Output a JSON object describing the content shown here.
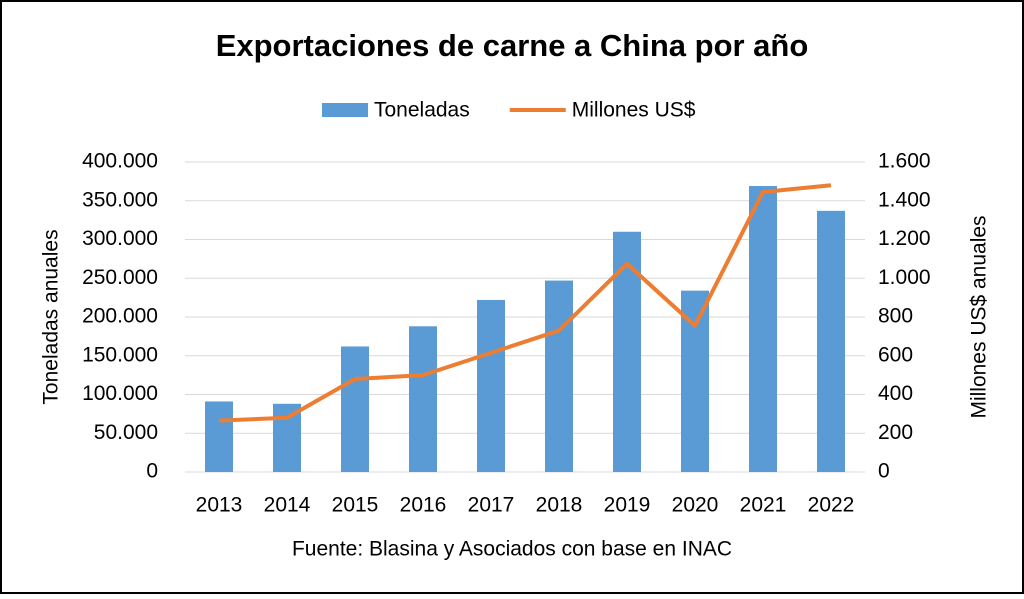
{
  "chart_data": {
    "type": "bar_line",
    "title": "Exportaciones de carne a China por año",
    "categories": [
      "2013",
      "2014",
      "2015",
      "2016",
      "2017",
      "2018",
      "2019",
      "2020",
      "2021",
      "2022"
    ],
    "series": [
      {
        "name": "Toneladas",
        "color": "#5b9bd5",
        "type": "bar",
        "values": [
          91000,
          88000,
          162000,
          188000,
          222000,
          247000,
          310000,
          234000,
          369000,
          337000
        ]
      },
      {
        "name": "Millones US$",
        "color": "#ed7d31",
        "type": "line",
        "axis": "y2",
        "values": [
          265,
          280,
          480,
          500,
          615,
          730,
          1075,
          755,
          1445,
          1480
        ]
      }
    ],
    "ylabel": "Toneladas anuales",
    "y2label": "Millones US$ anuales",
    "ylim": [
      0,
      400000
    ],
    "yticks": [
      0,
      {
        "value": 50000,
        "label": "50.000"
      },
      {
        "value": 100000,
        "label": "100.000"
      },
      {
        "value": 150000,
        "label": "150.000"
      },
      {
        "value": 200000,
        "label": "200.000"
      },
      {
        "value": 250000,
        "label": "250.000"
      },
      {
        "value": 300000,
        "label": "300.000"
      },
      {
        "value": 350000,
        "label": "350.000"
      },
      {
        "value": 400000,
        "label": "400.000"
      }
    ],
    "y2lim": [
      0,
      1600
    ],
    "y2ticks": [
      0,
      200,
      400,
      600,
      800,
      {
        "value": 1000,
        "label": "1.000"
      },
      {
        "value": 1200,
        "label": "1.200"
      },
      {
        "value": 1400,
        "label": "1.400"
      },
      {
        "value": 1600,
        "label": "1.600"
      }
    ],
    "source": "Fuente: Blasina y Asociados con base en INAC",
    "grid": true,
    "legend": "top"
  }
}
